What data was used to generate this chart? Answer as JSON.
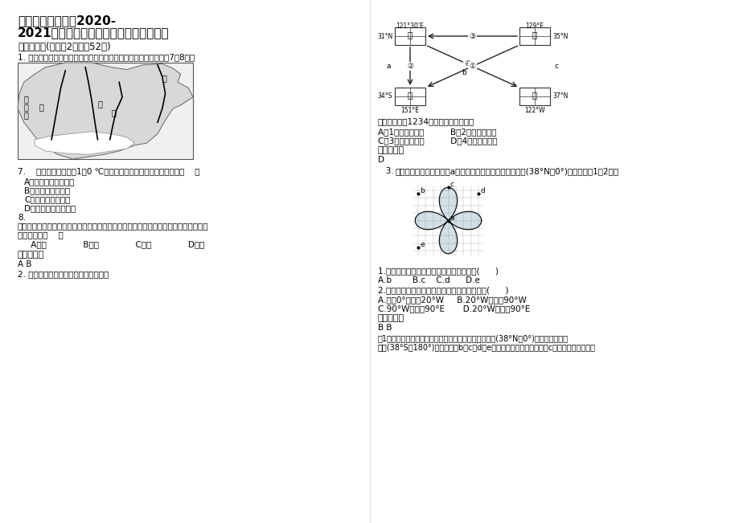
{
  "title_line1": "天津南开务实中学2020-",
  "title_line2": "2021学年高三地理上学期期末试题含解析",
  "section1": "一、选择题(每小题2分，共52分)",
  "q1_text": "1. 如图为欧洲部分地区略图，图中四条线是重要的地理界线，完成7～8题。",
  "q7_text": "7.    哪一条界线可能是1月0 ℃等温线？影响其分布的主要因素是（    ）",
  "q7_A": "A．甲：盛行风、洋流",
  "q7_B": "B．乙：纬度、地形",
  "q7_C": "C．丙：经度、地形",
  "q7_D": "D．丁：盛行风、纬度",
  "q8_label": "8.",
  "q8_line1": "这里地质活动活跃，石灰岩层受板块挤压而变质成大理岩，此叙述所指的地区，可能接",
  "q8_line2": "近的界线是（    ）",
  "q8_options": "     A．甲              B．乙              C．丙              D．丁",
  "answer_label": "参考答案：",
  "answer1": "A B",
  "q2_text": "2. 下图是世界四地的关联图，读图完成",
  "right_q_intro": "如果图中箭头1234表示我国的远洋航线",
  "right_A": "A、1表示南行航线          B、2表示东行航线",
  "right_C": "C、3表示西行航线          D、4表示北行航线",
  "right_answer_label": "参考答案：",
  "right_answer": "D",
  "q3_label": "   3.",
  "q3_text": "下图为地球星瓣图，图中a为陆地相对集中的陆半球的极点(38°N，0°)，据此回答1～2题。",
  "q3_1": "1.与陆半球对应的水半球的极点应是图中的(      )",
  "q3_1_opts": "A.b        B.c    C.d      D.e",
  "q3_2": "2.赤道上位于陆半球且位于西半球的经度范围是(      )",
  "q3_2_A": "A.经度0°向西至20°W     B.20°W向西至90°W",
  "q3_2_C": "C.90°W向东至90°E       D.20°W向东至90°E",
  "right_answer2_label": "参考答案：",
  "right_answer2": "B B",
  "expl_line1": "第1题，水半球和陆半球的极点相对应。陆半球的极点为(38°N、0°)，则水半球的极",
  "expl_line2": "点为(38°S、180°)；结合图中b、c、d、e所处的海陆位置，可判断出c点为水半球的极点。",
  "bg_color": "#ffffff",
  "text_color": "#000000"
}
